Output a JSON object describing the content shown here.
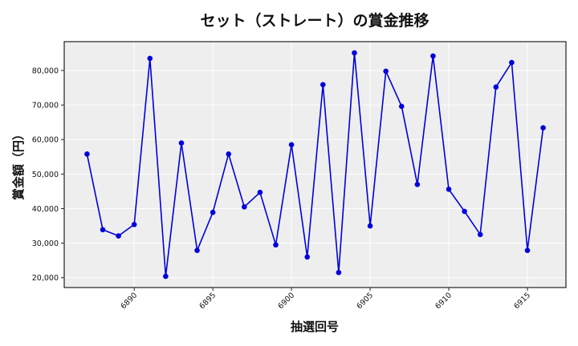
{
  "chart_data": {
    "type": "line",
    "title": "セット（ストレート）の賞金推移",
    "xlabel": "抽選回号",
    "ylabel": "賞金額（円）",
    "x": [
      6887,
      6888,
      6889,
      6890,
      6891,
      6892,
      6893,
      6894,
      6895,
      6896,
      6897,
      6898,
      6899,
      6900,
      6901,
      6902,
      6903,
      6904,
      6905,
      6906,
      6907,
      6908,
      6909,
      6910,
      6911,
      6912,
      6913,
      6914,
      6915,
      6916
    ],
    "series": [
      {
        "name": "賞金額",
        "color": "#0000dd",
        "values": [
          55800,
          33900,
          32100,
          35400,
          83500,
          20400,
          59000,
          27900,
          38900,
          55800,
          40500,
          44700,
          29500,
          58500,
          26000,
          75900,
          21500,
          85100,
          35000,
          79800,
          69600,
          47000,
          84200,
          45600,
          39200,
          32500,
          75200,
          82300,
          27900,
          63400
        ]
      }
    ],
    "xticks": [
      6890,
      6895,
      6900,
      6905,
      6910,
      6915
    ],
    "yticks": [
      20000,
      30000,
      40000,
      50000,
      60000,
      70000,
      80000
    ],
    "ytick_labels": [
      "20,000",
      "30,000",
      "40,000",
      "50,000",
      "60,000",
      "70,000",
      "80,000"
    ],
    "xlim": [
      6885.55,
      6917.45
    ],
    "ylim": [
      17150,
      88350
    ],
    "grid": true,
    "legend": "none",
    "background": "#eeeeee"
  }
}
